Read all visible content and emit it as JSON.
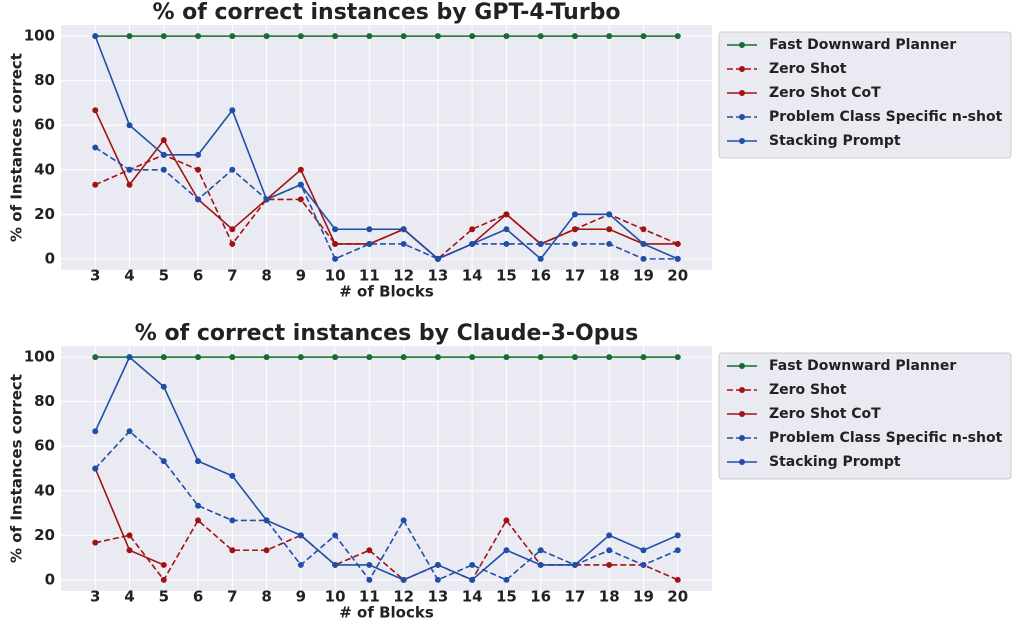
{
  "chart_data": [
    {
      "type": "line",
      "title": "% of correct instances by GPT-4-Turbo",
      "xlabel": "# of Blocks",
      "ylabel": "% of Instances correct",
      "x": [
        3,
        4,
        5,
        6,
        7,
        8,
        9,
        10,
        11,
        12,
        13,
        14,
        15,
        16,
        17,
        18,
        19,
        20
      ],
      "xlim": [
        2,
        21
      ],
      "xticks": [
        3,
        4,
        5,
        6,
        7,
        8,
        9,
        10,
        11,
        12,
        13,
        14,
        15,
        16,
        17,
        18,
        19,
        20
      ],
      "ylim": [
        -5,
        105
      ],
      "yticks": [
        0,
        20,
        40,
        60,
        80,
        100
      ],
      "grid": true,
      "legend": "outside right",
      "series": [
        {
          "name": "Fast Downward Planner",
          "color": "#1b6b30",
          "linestyle": "solid",
          "values": [
            100,
            100,
            100,
            100,
            100,
            100,
            100,
            100,
            100,
            100,
            100,
            100,
            100,
            100,
            100,
            100,
            100,
            100
          ]
        },
        {
          "name": "Zero Shot",
          "color": "#a11313",
          "linestyle": "dashed",
          "values": [
            33.3,
            40,
            46.7,
            40,
            6.7,
            26.7,
            26.7,
            6.7,
            6.7,
            13.3,
            0,
            13.3,
            20,
            6.7,
            13.3,
            20,
            13.3,
            6.7
          ]
        },
        {
          "name": "Zero Shot CoT",
          "color": "#a11313",
          "linestyle": "solid",
          "values": [
            66.7,
            33.3,
            53.3,
            26.7,
            13.3,
            26.7,
            40,
            6.7,
            6.7,
            13.3,
            0,
            6.7,
            20,
            6.7,
            13.3,
            13.3,
            6.7,
            6.7
          ]
        },
        {
          "name": "Problem Class Specific n-shot",
          "color": "#1f4fa8",
          "linestyle": "dashed",
          "values": [
            50,
            40,
            40,
            26.7,
            40,
            26.7,
            33.3,
            0,
            6.7,
            6.7,
            0,
            6.7,
            6.7,
            6.7,
            6.7,
            6.7,
            0,
            0
          ]
        },
        {
          "name": "Stacking Prompt",
          "color": "#1f4fa8",
          "linestyle": "solid",
          "values": [
            100,
            60,
            46.7,
            46.7,
            66.7,
            26.7,
            33.3,
            13.3,
            13.3,
            13.3,
            0,
            6.7,
            13.3,
            0,
            20,
            20,
            6.7,
            0
          ]
        }
      ]
    },
    {
      "type": "line",
      "title": "% of correct instances by Claude-3-Opus",
      "xlabel": "# of Blocks",
      "ylabel": "% of Instances correct",
      "x": [
        3,
        4,
        5,
        6,
        7,
        8,
        9,
        10,
        11,
        12,
        13,
        14,
        15,
        16,
        17,
        18,
        19,
        20
      ],
      "xlim": [
        2,
        21
      ],
      "xticks": [
        3,
        4,
        5,
        6,
        7,
        8,
        9,
        10,
        11,
        12,
        13,
        14,
        15,
        16,
        17,
        18,
        19,
        20
      ],
      "ylim": [
        -5,
        105
      ],
      "yticks": [
        0,
        20,
        40,
        60,
        80,
        100
      ],
      "grid": true,
      "legend": "outside right",
      "series": [
        {
          "name": "Fast Downward Planner",
          "color": "#1b6b30",
          "linestyle": "solid",
          "values": [
            100,
            100,
            100,
            100,
            100,
            100,
            100,
            100,
            100,
            100,
            100,
            100,
            100,
            100,
            100,
            100,
            100,
            100
          ]
        },
        {
          "name": "Zero Shot",
          "color": "#a11313",
          "linestyle": "dashed",
          "values": [
            16.7,
            20,
            0,
            26.7,
            13.3,
            13.3,
            20,
            6.7,
            13.3,
            0,
            6.7,
            0,
            26.7,
            6.7,
            6.7,
            6.7,
            6.7,
            0
          ]
        },
        {
          "name": "Zero Shot CoT",
          "color": "#a11313",
          "linestyle": "solid",
          "values": [
            50,
            13.3,
            6.7,
            null,
            null,
            null,
            null,
            null,
            null,
            null,
            null,
            null,
            null,
            null,
            null,
            null,
            null,
            null
          ]
        },
        {
          "name": "Problem Class Specific n-shot",
          "color": "#1f4fa8",
          "linestyle": "dashed",
          "values": [
            50,
            66.7,
            53.3,
            33.3,
            26.7,
            26.7,
            6.7,
            20,
            0,
            26.7,
            0,
            6.7,
            0,
            13.3,
            6.7,
            13.3,
            6.7,
            13.3
          ]
        },
        {
          "name": "Stacking Prompt",
          "color": "#1f4fa8",
          "linestyle": "solid",
          "values": [
            66.7,
            100,
            86.7,
            53.3,
            46.7,
            26.7,
            20,
            6.7,
            6.7,
            0,
            6.7,
            0,
            13.3,
            6.7,
            6.7,
            20,
            13.3,
            20
          ]
        }
      ]
    }
  ]
}
